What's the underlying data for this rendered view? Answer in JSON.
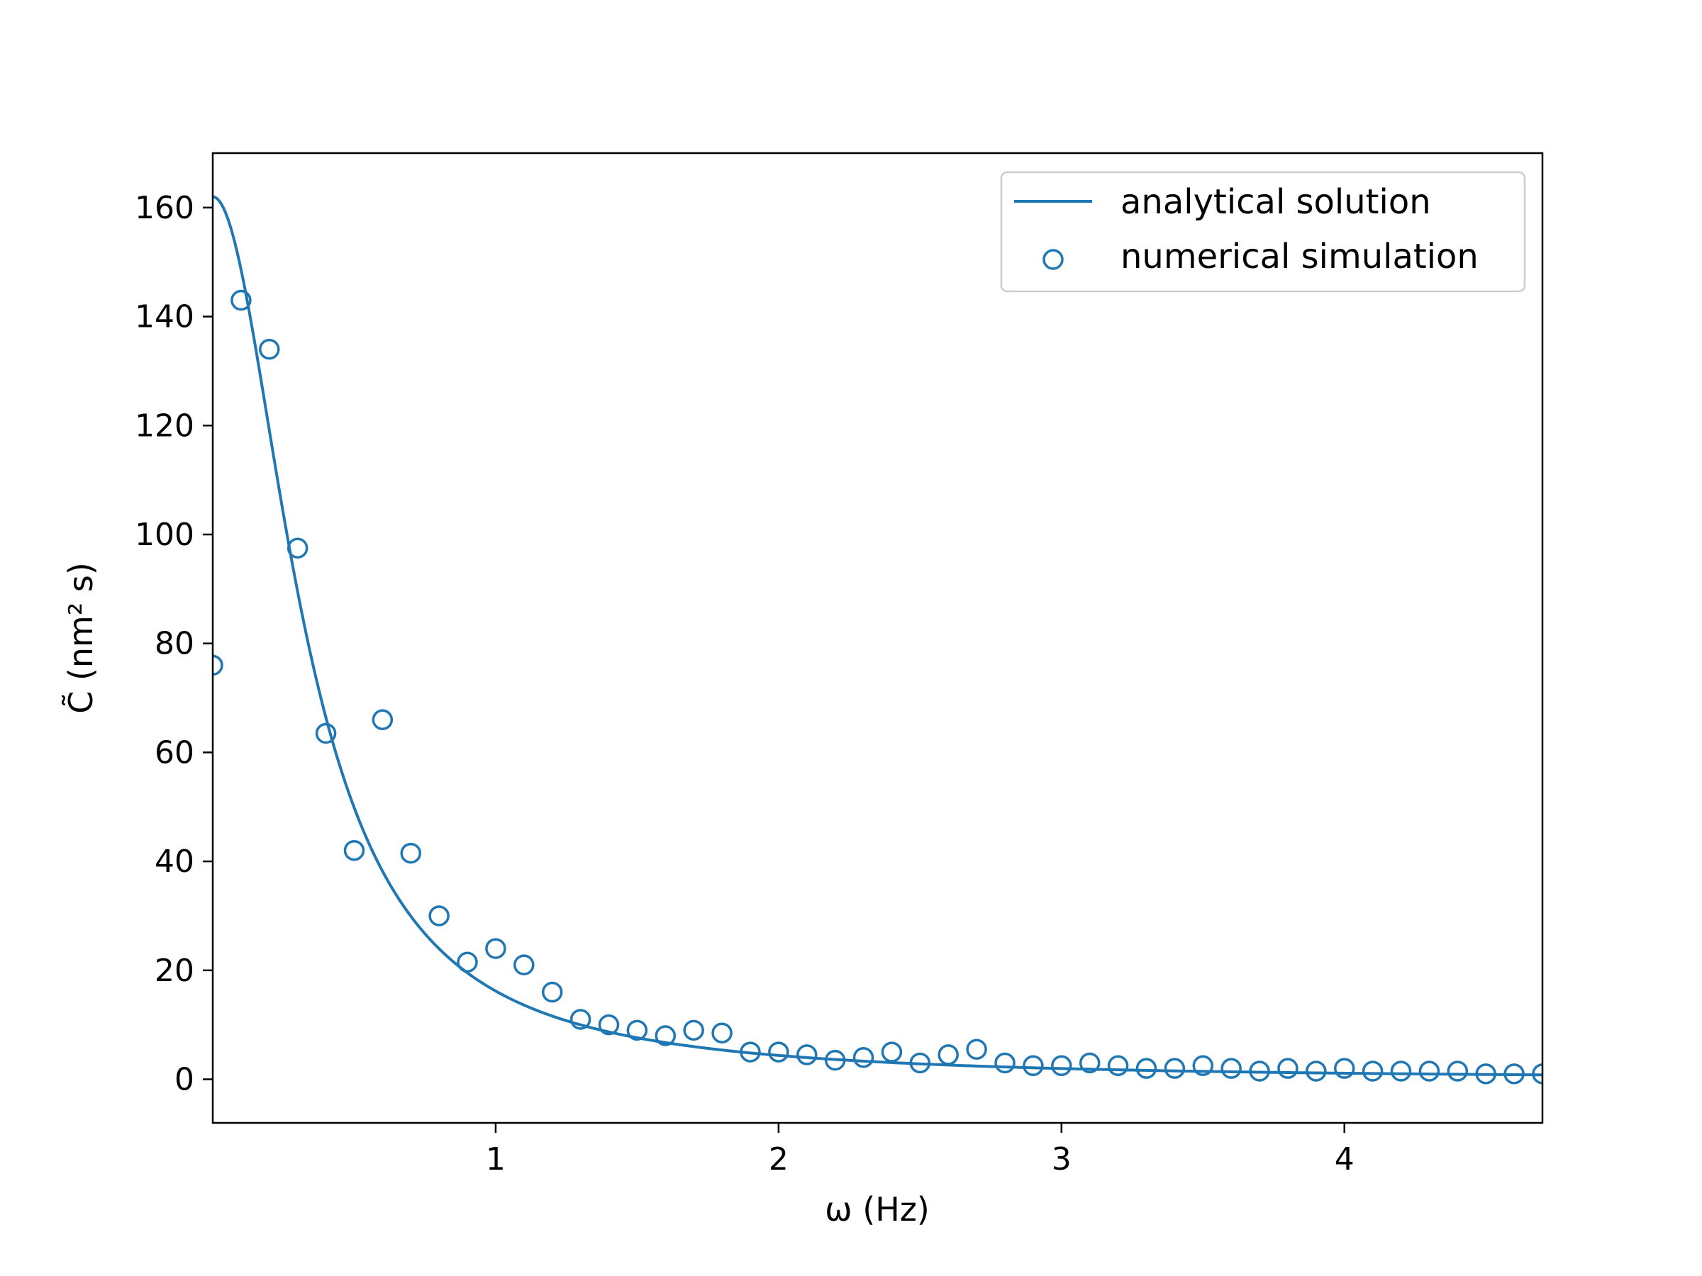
{
  "chart_data": {
    "type": "line",
    "xlabel": "ω (Hz)",
    "ylabel": "C̃ (nm² s)",
    "xlim": [
      0.0,
      4.7
    ],
    "ylim": [
      -8,
      170
    ],
    "x_ticks": [
      1,
      2,
      3,
      4
    ],
    "y_ticks": [
      0,
      20,
      40,
      60,
      80,
      100,
      120,
      140,
      160
    ],
    "grid": false,
    "legend_position": "top-right",
    "color": "#1f77b4",
    "series": [
      {
        "name": "analytical solution",
        "kind": "line",
        "model": {
          "amplitude": 162,
          "tau": 3.0
        }
      },
      {
        "name": "numerical simulation",
        "kind": "scatter",
        "marker": "open-circle",
        "x": [
          0.0,
          0.1,
          0.2,
          0.3,
          0.4,
          0.5,
          0.6,
          0.7,
          0.8,
          0.9,
          1.0,
          1.1,
          1.2,
          1.3,
          1.4,
          1.5,
          1.6,
          1.7,
          1.8,
          1.9,
          2.0,
          2.1,
          2.2,
          2.3,
          2.4,
          2.5,
          2.6,
          2.7,
          2.8,
          2.9,
          3.0,
          3.1,
          3.2,
          3.3,
          3.4,
          3.5,
          3.6,
          3.7,
          3.8,
          3.9,
          4.0,
          4.1,
          4.2,
          4.3,
          4.4,
          4.5,
          4.6,
          4.7
        ],
        "y": [
          76,
          143,
          134,
          97.5,
          63.5,
          42,
          66,
          41.5,
          30,
          21.5,
          24,
          21,
          16,
          11,
          10,
          9,
          8,
          9,
          8.5,
          5,
          5,
          4.5,
          3.5,
          4,
          5,
          3,
          4.5,
          5.5,
          3,
          2.5,
          2.5,
          3,
          2.5,
          2,
          2,
          2.5,
          2,
          1.5,
          2,
          1.5,
          2,
          1.5,
          1.5,
          1.5,
          1.5,
          1,
          1,
          1
        ]
      }
    ]
  }
}
